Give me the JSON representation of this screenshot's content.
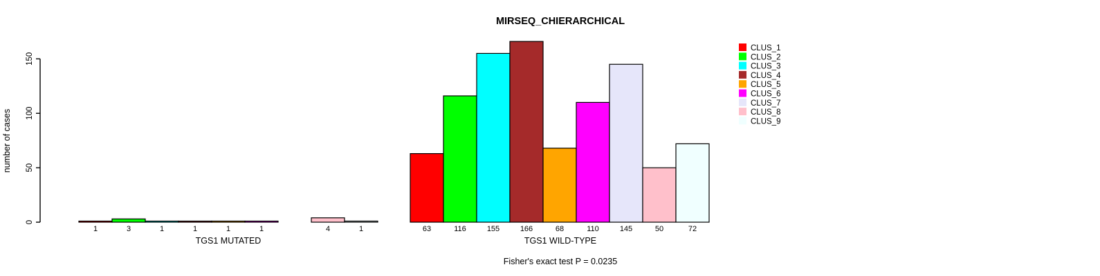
{
  "chart_data": {
    "type": "bar",
    "title": "MIRSEQ_CHIERARCHICAL",
    "ylabel": "number of cases",
    "subtitle": "Fisher's exact test P = 0.0235",
    "ylim": [
      0,
      150
    ],
    "yticks": [
      0,
      50,
      100,
      150
    ],
    "grid": false,
    "legend_position": "right",
    "clusters": [
      "CLUS_1",
      "CLUS_2",
      "CLUS_3",
      "CLUS_4",
      "CLUS_5",
      "CLUS_6",
      "CLUS_7",
      "CLUS_8",
      "CLUS_9"
    ],
    "colors": [
      "#FF0000",
      "#00FF00",
      "#00FFFF",
      "#A52A2A",
      "#FFA500",
      "#FF00FF",
      "#E6E6FA",
      "#FFC0CB",
      "#F0FFFF"
    ],
    "bar_border_color": "#000000",
    "groups": [
      {
        "label": "TGS1 MUTATED",
        "values": [
          1,
          3,
          1,
          1,
          1,
          1,
          0,
          4,
          1
        ]
      },
      {
        "label": "TGS1 WILD-TYPE",
        "values": [
          63,
          116,
          155,
          166,
          68,
          110,
          145,
          50,
          72
        ]
      }
    ]
  }
}
